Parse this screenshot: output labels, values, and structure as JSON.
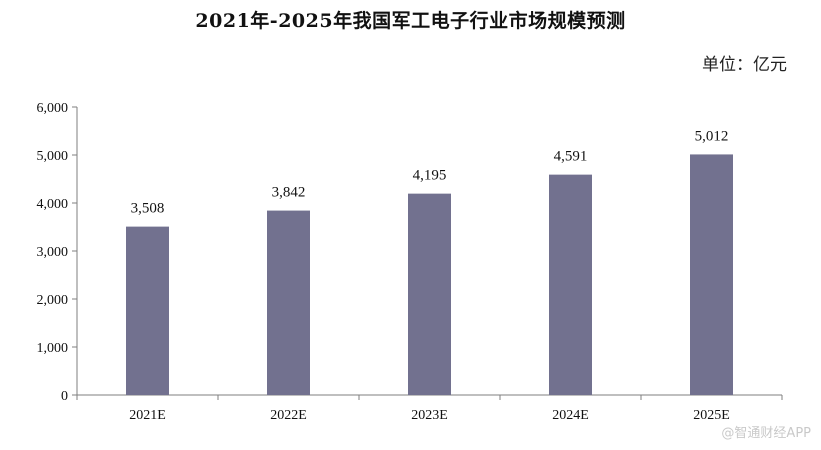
{
  "chart_data": {
    "type": "bar",
    "title": "2021年-2025年我国军工电子行业市场规模预测",
    "unit": "单位：亿元",
    "categories": [
      "2021E",
      "2022E",
      "2023E",
      "2024E",
      "2025E"
    ],
    "values": [
      3508,
      3842,
      4195,
      4591,
      5012
    ],
    "value_labels": [
      "3,508",
      "3,842",
      "4,195",
      "4,591",
      "5,012"
    ],
    "yticks": [
      0,
      1000,
      2000,
      3000,
      4000,
      5000,
      6000
    ],
    "ytick_labels": [
      "0",
      "1,000",
      "2,000",
      "3,000",
      "4,000",
      "5,000",
      "6,000"
    ],
    "ylim": [
      0,
      6000
    ],
    "xlabel": "",
    "ylabel": "",
    "grid": false,
    "bar_color": "#72718f",
    "axis_color": "#7f7f7f"
  },
  "watermark": "@智通财经APP"
}
